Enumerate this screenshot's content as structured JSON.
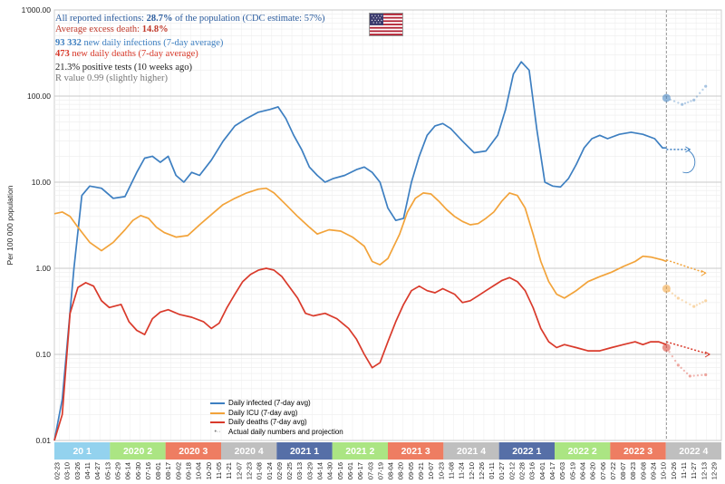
{
  "info": {
    "line1_prefix": "All reported infections: ",
    "line1_value": "28.7%",
    "line1_suffix": " of the population (CDC estimate: 57%)",
    "line2_prefix": "Average excess death: ",
    "line2_value": "14.8%",
    "line3_value": "93 332",
    "line3_suffix": " new daily infections (7-day average)",
    "line4_value": "473",
    "line4_suffix": " new daily deaths (7-day average)",
    "line5": "21.3% positive tests (10 weeks ago)",
    "line6": "R value 0.99 (slightly higher)"
  },
  "flag": {
    "name": "us-flag-icon"
  },
  "colors": {
    "infected": "#3d7fc1",
    "icu": "#f2a33a",
    "deaths": "#d93a2b",
    "info_blue": "#2b5c9e",
    "info_red": "#c0392b",
    "info_lightblue": "#3d7fc1",
    "grid": "#dcdcdc"
  },
  "chart_data": {
    "type": "line",
    "title": "",
    "ylabel": "Per 100 000 population",
    "yscale": "log",
    "ylim": [
      0.01,
      1000
    ],
    "y_ticks": [
      "0.01",
      "0.10",
      "1.00",
      "10.00",
      "100.00",
      "1'000.00"
    ],
    "x_tick_labels": [
      "02-23",
      "03-10",
      "03-26",
      "04-11",
      "04-27",
      "05-13",
      "05-29",
      "06-14",
      "06-30",
      "07-16",
      "08-01",
      "08-17",
      "09-02",
      "09-18",
      "10-04",
      "10-20",
      "11-05",
      "11-21",
      "12-07",
      "12-23",
      "01-08",
      "01-24",
      "02-09",
      "02-25",
      "03-13",
      "03-29",
      "04-14",
      "04-30",
      "05-16",
      "06-01",
      "06-17",
      "07-03",
      "07-19",
      "08-04",
      "08-20",
      "09-05",
      "09-21",
      "10-07",
      "10-23",
      "11-08",
      "11-24",
      "12-10",
      "12-26",
      "01-11",
      "01-27",
      "02-12",
      "02-28",
      "03-16",
      "04-01",
      "04-17",
      "05-03",
      "05-19",
      "06-04",
      "06-20",
      "07-06",
      "07-22",
      "08-07",
      "08-23",
      "09-08",
      "09-24",
      "10-10",
      "10-26",
      "11-11",
      "11-27",
      "12-13",
      "12-29"
    ],
    "quarters": [
      {
        "label": "20 1",
        "color": "#6fc3e8"
      },
      {
        "label": "2020 2",
        "color": "#8fdc5a"
      },
      {
        "label": "2020 3",
        "color": "#e8522d"
      },
      {
        "label": "2020 4",
        "color": "#aaaaaa"
      },
      {
        "label": "2021 1",
        "color": "#1e3f8a"
      },
      {
        "label": "2021 2",
        "color": "#8fdc5a"
      },
      {
        "label": "2021 3",
        "color": "#e8522d"
      },
      {
        "label": "2021 4",
        "color": "#aaaaaa"
      },
      {
        "label": "2022 1",
        "color": "#1e3f8a"
      },
      {
        "label": "2022 2",
        "color": "#8fdc5a"
      },
      {
        "label": "2022 3",
        "color": "#e8522d"
      },
      {
        "label": "2022 4",
        "color": "#aaaaaa"
      }
    ],
    "series": [
      {
        "name": "Daily infected (7-day avg)",
        "key": "infected",
        "points": [
          [
            0,
            0.01
          ],
          [
            2,
            0.03
          ],
          [
            5,
            1.0
          ],
          [
            7,
            7.0
          ],
          [
            9,
            9.0
          ],
          [
            12,
            8.5
          ],
          [
            15,
            6.5
          ],
          [
            18,
            6.8
          ],
          [
            21,
            13
          ],
          [
            23,
            19
          ],
          [
            25,
            20
          ],
          [
            27,
            17
          ],
          [
            29,
            20
          ],
          [
            31,
            12
          ],
          [
            33,
            10
          ],
          [
            35,
            13
          ],
          [
            37,
            12
          ],
          [
            40,
            18
          ],
          [
            43,
            30
          ],
          [
            46,
            45
          ],
          [
            49,
            55
          ],
          [
            52,
            65
          ],
          [
            55,
            70
          ],
          [
            57,
            75
          ],
          [
            59,
            55
          ],
          [
            61,
            35
          ],
          [
            63,
            24
          ],
          [
            65,
            15
          ],
          [
            67,
            12
          ],
          [
            69,
            10
          ],
          [
            71,
            11
          ],
          [
            74,
            12
          ],
          [
            77,
            14
          ],
          [
            79,
            15
          ],
          [
            81,
            13
          ],
          [
            83,
            10
          ],
          [
            85,
            5
          ],
          [
            87,
            3.6
          ],
          [
            89,
            3.8
          ],
          [
            91,
            10
          ],
          [
            93,
            20
          ],
          [
            95,
            35
          ],
          [
            97,
            45
          ],
          [
            99,
            48
          ],
          [
            101,
            42
          ],
          [
            104,
            30
          ],
          [
            107,
            22
          ],
          [
            110,
            23
          ],
          [
            113,
            35
          ],
          [
            115,
            70
          ],
          [
            117,
            180
          ],
          [
            119,
            250
          ],
          [
            121,
            200
          ],
          [
            123,
            40
          ],
          [
            125,
            10
          ],
          [
            127,
            9
          ],
          [
            129,
            8.8
          ],
          [
            131,
            11
          ],
          [
            133,
            16
          ],
          [
            135,
            25
          ],
          [
            137,
            32
          ],
          [
            139,
            35
          ],
          [
            141,
            32
          ],
          [
            144,
            36
          ],
          [
            147,
            38
          ],
          [
            150,
            36
          ],
          [
            153,
            32
          ],
          [
            155,
            25
          ],
          [
            156,
            25
          ]
        ]
      },
      {
        "name": "Daily ICU (7-day avg)",
        "key": "icu",
        "points": [
          [
            0,
            4.3
          ],
          [
            2,
            4.5
          ],
          [
            4,
            4.0
          ],
          [
            6,
            3.0
          ],
          [
            9,
            2.0
          ],
          [
            12,
            1.6
          ],
          [
            15,
            2.0
          ],
          [
            18,
            2.8
          ],
          [
            20,
            3.6
          ],
          [
            22,
            4.1
          ],
          [
            24,
            3.8
          ],
          [
            26,
            3.0
          ],
          [
            28,
            2.6
          ],
          [
            31,
            2.3
          ],
          [
            34,
            2.4
          ],
          [
            37,
            3.2
          ],
          [
            40,
            4.2
          ],
          [
            43,
            5.5
          ],
          [
            46,
            6.5
          ],
          [
            49,
            7.5
          ],
          [
            52,
            8.3
          ],
          [
            54,
            8.5
          ],
          [
            56,
            7.5
          ],
          [
            59,
            5.5
          ],
          [
            62,
            4.0
          ],
          [
            65,
            3.0
          ],
          [
            67,
            2.5
          ],
          [
            70,
            2.8
          ],
          [
            73,
            2.7
          ],
          [
            76,
            2.3
          ],
          [
            79,
            1.8
          ],
          [
            81,
            1.2
          ],
          [
            83,
            1.1
          ],
          [
            85,
            1.3
          ],
          [
            88,
            2.5
          ],
          [
            90,
            4.5
          ],
          [
            92,
            6.5
          ],
          [
            94,
            7.5
          ],
          [
            96,
            7.3
          ],
          [
            98,
            6.0
          ],
          [
            100,
            4.8
          ],
          [
            102,
            4.0
          ],
          [
            104,
            3.5
          ],
          [
            106,
            3.2
          ],
          [
            108,
            3.3
          ],
          [
            110,
            3.8
          ],
          [
            112,
            4.5
          ],
          [
            114,
            6.0
          ],
          [
            116,
            7.5
          ],
          [
            118,
            7.0
          ],
          [
            120,
            5.0
          ],
          [
            122,
            2.5
          ],
          [
            124,
            1.2
          ],
          [
            126,
            0.7
          ],
          [
            128,
            0.5
          ],
          [
            130,
            0.45
          ],
          [
            133,
            0.55
          ],
          [
            136,
            0.7
          ],
          [
            139,
            0.8
          ],
          [
            142,
            0.9
          ],
          [
            145,
            1.05
          ],
          [
            148,
            1.2
          ],
          [
            150,
            1.38
          ],
          [
            152,
            1.35
          ],
          [
            155,
            1.25
          ],
          [
            156,
            1.2
          ]
        ]
      },
      {
        "name": "Daily deaths (7-day avg)",
        "key": "deaths",
        "points": [
          [
            0,
            0.01
          ],
          [
            2,
            0.02
          ],
          [
            4,
            0.3
          ],
          [
            6,
            0.6
          ],
          [
            8,
            0.68
          ],
          [
            10,
            0.62
          ],
          [
            12,
            0.42
          ],
          [
            14,
            0.35
          ],
          [
            17,
            0.38
          ],
          [
            19,
            0.24
          ],
          [
            21,
            0.19
          ],
          [
            23,
            0.17
          ],
          [
            25,
            0.26
          ],
          [
            27,
            0.31
          ],
          [
            29,
            0.33
          ],
          [
            32,
            0.29
          ],
          [
            35,
            0.27
          ],
          [
            38,
            0.24
          ],
          [
            40,
            0.2
          ],
          [
            42,
            0.23
          ],
          [
            44,
            0.35
          ],
          [
            46,
            0.5
          ],
          [
            48,
            0.7
          ],
          [
            50,
            0.85
          ],
          [
            52,
            0.95
          ],
          [
            54,
            1.0
          ],
          [
            56,
            0.95
          ],
          [
            58,
            0.8
          ],
          [
            60,
            0.6
          ],
          [
            62,
            0.45
          ],
          [
            64,
            0.3
          ],
          [
            66,
            0.28
          ],
          [
            69,
            0.3
          ],
          [
            72,
            0.26
          ],
          [
            75,
            0.2
          ],
          [
            77,
            0.15
          ],
          [
            79,
            0.1
          ],
          [
            81,
            0.07
          ],
          [
            83,
            0.08
          ],
          [
            85,
            0.14
          ],
          [
            87,
            0.24
          ],
          [
            89,
            0.38
          ],
          [
            91,
            0.55
          ],
          [
            93,
            0.62
          ],
          [
            95,
            0.55
          ],
          [
            97,
            0.52
          ],
          [
            99,
            0.58
          ],
          [
            102,
            0.5
          ],
          [
            104,
            0.4
          ],
          [
            106,
            0.42
          ],
          [
            108,
            0.48
          ],
          [
            110,
            0.55
          ],
          [
            112,
            0.63
          ],
          [
            114,
            0.72
          ],
          [
            116,
            0.78
          ],
          [
            118,
            0.7
          ],
          [
            120,
            0.55
          ],
          [
            122,
            0.35
          ],
          [
            124,
            0.2
          ],
          [
            126,
            0.14
          ],
          [
            128,
            0.12
          ],
          [
            130,
            0.13
          ],
          [
            133,
            0.12
          ],
          [
            136,
            0.11
          ],
          [
            139,
            0.11
          ],
          [
            142,
            0.12
          ],
          [
            145,
            0.13
          ],
          [
            148,
            0.14
          ],
          [
            150,
            0.13
          ],
          [
            152,
            0.14
          ],
          [
            154,
            0.14
          ],
          [
            156,
            0.13
          ]
        ]
      }
    ],
    "projections": [
      {
        "key": "infected",
        "points": [
          [
            156,
            24
          ],
          [
            162,
            24
          ]
        ],
        "curl": true
      },
      {
        "key": "icu",
        "points": [
          [
            156,
            1.25
          ],
          [
            166,
            0.88
          ]
        ]
      },
      {
        "key": "deaths",
        "points": [
          [
            156,
            0.14
          ],
          [
            167,
            0.1
          ]
        ]
      }
    ],
    "projection_markers": [
      {
        "key": "infected",
        "points": [
          [
            156,
            95
          ],
          [
            160,
            80
          ],
          [
            163,
            90
          ],
          [
            166,
            130
          ]
        ]
      },
      {
        "key": "icu",
        "points": [
          [
            156,
            0.58
          ],
          [
            159,
            0.45
          ],
          [
            163,
            0.36
          ],
          [
            166,
            0.42
          ]
        ]
      },
      {
        "key": "deaths",
        "points": [
          [
            156,
            0.12
          ],
          [
            159,
            0.075
          ],
          [
            162,
            0.056
          ],
          [
            166,
            0.058
          ]
        ]
      }
    ],
    "current_marker_x": 156,
    "x_domain": [
      0,
      170
    ],
    "legend": [
      {
        "label": "Daily infected (7-day avg)",
        "key": "infected"
      },
      {
        "label": "Daily ICU (7-day avg)",
        "key": "icu"
      },
      {
        "label": "Daily deaths (7-day avg)",
        "key": "deaths"
      },
      {
        "label": "Actual daily numbers and projection",
        "key": "projection"
      }
    ]
  }
}
